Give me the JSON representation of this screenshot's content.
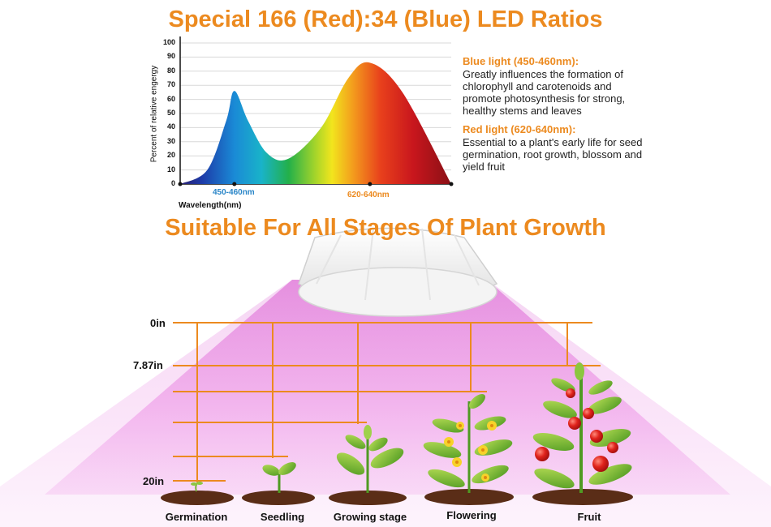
{
  "titles": {
    "spectrum": "Special 166 (Red):34 (Blue) LED Ratios",
    "stages": "Suitable For All Stages Of Plant Growth"
  },
  "chart_data": {
    "type": "area",
    "ylabel": "Percent of relative engergy",
    "xlabel": "Wavelength(nm)",
    "ylim": [
      0,
      100
    ],
    "yticks": [
      "0",
      "10",
      "20",
      "30",
      "40",
      "50",
      "60",
      "70",
      "80",
      "90",
      "100"
    ],
    "x_markers": [
      {
        "label": "450-460nm",
        "color": "#2a86c8"
      },
      {
        "label": "620-640nm",
        "color": "#ec8a1f"
      }
    ],
    "x": [
      0,
      0.1,
      0.17,
      0.2,
      0.25,
      0.32,
      0.4,
      0.52,
      0.62,
      0.7,
      0.82,
      1.0
    ],
    "y": [
      0,
      10,
      45,
      66,
      45,
      22,
      18,
      40,
      75,
      86,
      65,
      0
    ],
    "grid": true
  },
  "info": {
    "blue_head": "Blue light (450-460nm):",
    "blue_body": "Greatly influences the formation of chlorophyll and carotenoids and promote photosynthesis for strong, healthy stems and leaves",
    "red_head": "Red light (620-640nm):",
    "red_body": "Essential to a plant's early life for seed germination, root growth, blossom and yield fruit"
  },
  "distances": {
    "top": "0in",
    "mid": "7.87in",
    "bottom": "20in"
  },
  "stages": [
    {
      "label": "Germination"
    },
    {
      "label": "Seedling"
    },
    {
      "label": "Growing stage"
    },
    {
      "label": "Flowering"
    },
    {
      "label": "Fruit"
    }
  ],
  "colors": {
    "accent": "#ec8a1f",
    "blue_label": "#2a86c8",
    "light_cone": "#e98ee6"
  }
}
